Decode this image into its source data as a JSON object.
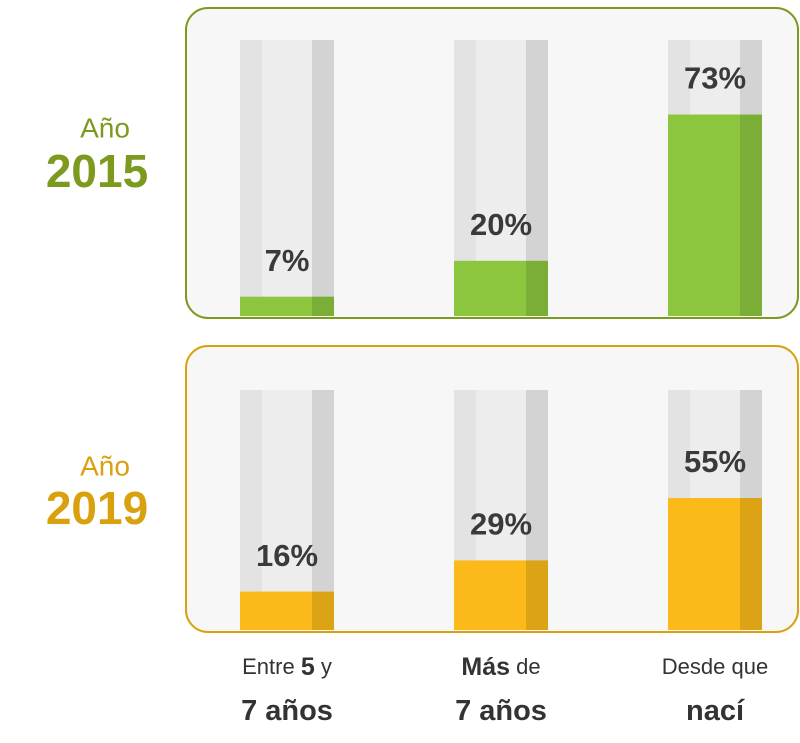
{
  "chart_data": [
    {
      "type": "bar",
      "label": "Año",
      "year": "2015",
      "values": [
        7,
        20,
        73
      ],
      "value_labels": [
        "7%",
        "20%",
        "73%"
      ],
      "color": "#8cc63f",
      "accent": "#7b9a1e",
      "ylim": [
        0,
        100
      ]
    },
    {
      "type": "bar",
      "label": "Año",
      "year": "2019",
      "values": [
        16,
        29,
        55
      ],
      "value_labels": [
        "16%",
        "29%",
        "55%"
      ],
      "color": "#fbba1a",
      "accent": "#d9a10e",
      "ylim": [
        0,
        100
      ],
      "categories": [
        [
          [
            {
              "text": "Entre ",
              "bold": false
            },
            {
              "text": "5",
              "bold": true
            },
            {
              "text": " y",
              "bold": false
            }
          ],
          [
            {
              "text": "7 años",
              "bold": true
            }
          ]
        ],
        [
          [
            {
              "text": "Más",
              "bold": true
            },
            {
              "text": " de",
              "bold": false
            }
          ],
          [
            {
              "text": "7 años",
              "bold": true
            }
          ]
        ],
        [
          [
            {
              "text": "Desde que",
              "bold": false
            }
          ],
          [
            {
              "text": "nací",
              "bold": true
            }
          ]
        ]
      ]
    }
  ]
}
